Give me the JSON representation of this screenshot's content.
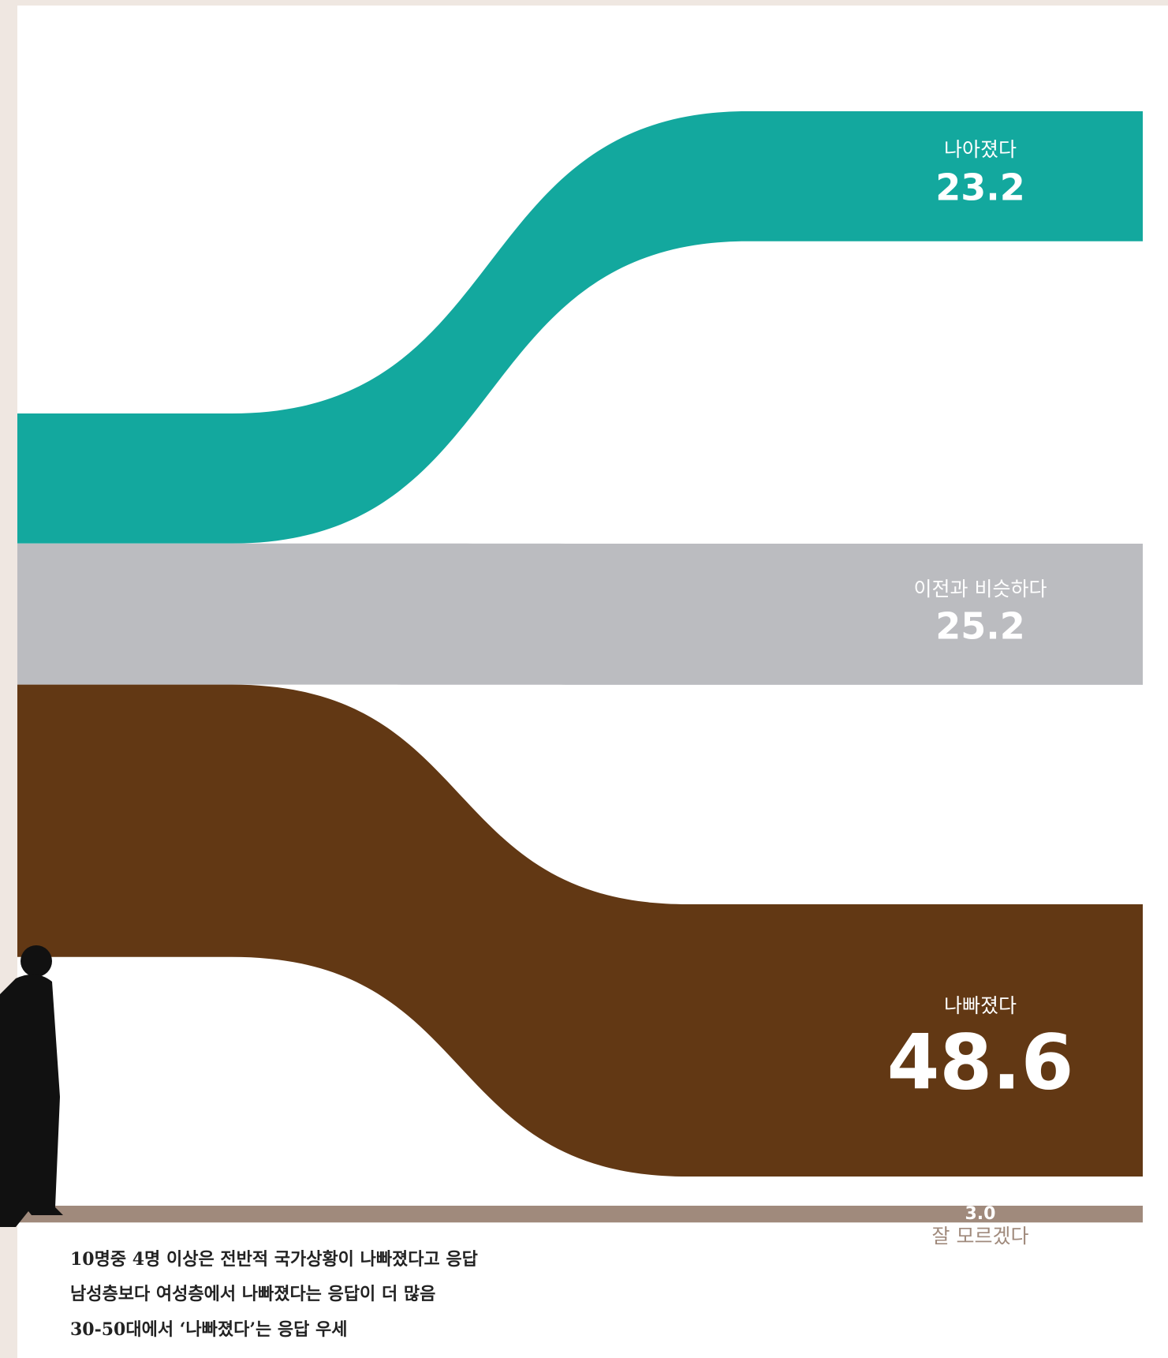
{
  "chart_data": {
    "type": "flow",
    "categories": [
      "나아졌다",
      "이전과 비슷하다",
      "나빠졌다",
      "잘 모르겠다"
    ],
    "values": [
      23.2,
      25.2,
      48.6,
      3.0
    ],
    "value_labels": [
      "23.2",
      "25.2",
      "48.6",
      "3.0"
    ],
    "colors": [
      "#13a89e",
      "#bbbcc0",
      "#623814",
      "#a08a7c"
    ]
  },
  "notes": [
    "10명중 4명 이상은 전반적 국가상황이 나빠졌다고 응답",
    "남성층보다 여성층에서 나빠졌다는 응답이 더 많음",
    "30-50대에서 ‘나빠졌다’는 응답 우세"
  ]
}
